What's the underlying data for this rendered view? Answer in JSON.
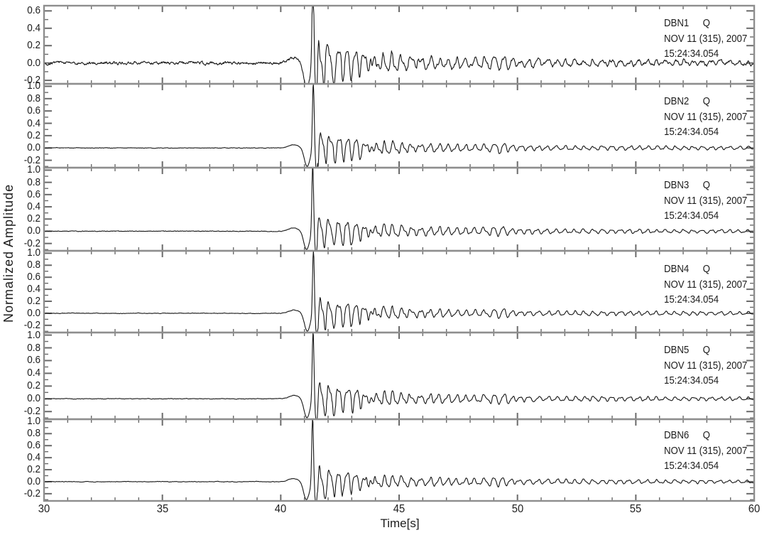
{
  "chart_data": {
    "type": "line",
    "title": "",
    "xlabel": "Time[s]",
    "ylabel": "Normalized Amplitude",
    "xlim": [
      30,
      60
    ],
    "x_major_ticks": [
      30,
      35,
      40,
      45,
      50,
      55,
      60
    ],
    "x_minor_step": 1,
    "grid": false,
    "legend": "none",
    "line_color": "#161616",
    "frame_color": "#8e8e8e",
    "tick_color": "#6a6a6a",
    "sample_step": 0.02,
    "event": {
      "precursor_bump": {
        "t": 40.55,
        "width": 0.3,
        "amp": 0.055
      },
      "pre_trough": {
        "t": 41.1,
        "width": 0.17,
        "amp": -0.3
      },
      "main_peak": {
        "t": 41.36,
        "width": 0.05,
        "amp": 1.12
      },
      "post_trough": {
        "t": 41.5,
        "width": 0.06,
        "amp": -0.44
      },
      "coda": {
        "t0": 41.56,
        "fast_amp": 0.2,
        "fast_decay": 2.2,
        "slow_amp": 0.045,
        "slow_decay": 25,
        "freq": 2.6
      },
      "bursts": [
        {
          "t": 43.7,
          "width": 0.7,
          "amp": 0.09,
          "freq": 3.0
        },
        {
          "t": 46.3,
          "width": 0.8,
          "amp": 0.05,
          "freq": 2.7
        },
        {
          "t": 49.35,
          "width": 0.55,
          "amp": 0.07,
          "freq": 2.5
        }
      ]
    },
    "panels": [
      {
        "station": "DBN1",
        "channel": "Q",
        "date_line": "NOV 11 (315), 2007",
        "time_line": "15:24:34.054",
        "ylim": [
          -0.24,
          0.66
        ],
        "y_major_ticks": [
          -0.2,
          0.0,
          0.2,
          0.4,
          0.6
        ],
        "y_minor_step": 0.1,
        "noise_amplitude": 0.022,
        "seed": 101,
        "time_shift": 0
      },
      {
        "station": "DBN2",
        "channel": "Q",
        "date_line": "NOV 11 (315), 2007",
        "time_line": "15:24:34.054",
        "ylim": [
          -0.32,
          1.04
        ],
        "y_major_ticks": [
          -0.2,
          0.0,
          0.2,
          0.4,
          0.6,
          0.8,
          1.0
        ],
        "y_minor_step": 0.1,
        "noise_amplitude": 0.006,
        "seed": 202,
        "time_shift": 0.015
      },
      {
        "station": "DBN3",
        "channel": "Q",
        "date_line": "NOV 11 (315), 2007",
        "time_line": "15:24:34.054",
        "ylim": [
          -0.32,
          1.04
        ],
        "y_major_ticks": [
          -0.2,
          0.0,
          0.2,
          0.4,
          0.6,
          0.8,
          1.0
        ],
        "y_minor_step": 0.1,
        "noise_amplitude": 0.006,
        "seed": 303,
        "time_shift": -0.01
      },
      {
        "station": "DBN4",
        "channel": "Q",
        "date_line": "NOV 11 (315), 2007",
        "time_line": "15:24:34.054",
        "ylim": [
          -0.32,
          1.04
        ],
        "y_major_ticks": [
          -0.2,
          0.0,
          0.2,
          0.4,
          0.6,
          0.8,
          1.0
        ],
        "y_minor_step": 0.1,
        "noise_amplitude": 0.006,
        "seed": 404,
        "time_shift": 0.02
      },
      {
        "station": "DBN5",
        "channel": "Q",
        "date_line": "NOV 11 (315), 2007",
        "time_line": "15:24:34.054",
        "ylim": [
          -0.32,
          1.04
        ],
        "y_major_ticks": [
          -0.2,
          0.0,
          0.2,
          0.4,
          0.6,
          0.8,
          1.0
        ],
        "y_minor_step": 0.1,
        "noise_amplitude": 0.006,
        "seed": 505,
        "time_shift": 0.005
      },
      {
        "station": "DBN6",
        "channel": "Q",
        "date_line": "NOV 11 (315), 2007",
        "time_line": "15:24:34.054",
        "ylim": [
          -0.32,
          1.04
        ],
        "y_major_ticks": [
          -0.2,
          0.0,
          0.2,
          0.4,
          0.6,
          0.8,
          1.0
        ],
        "y_minor_step": 0.1,
        "noise_amplitude": 0.006,
        "seed": 606,
        "time_shift": -0.015
      }
    ]
  }
}
